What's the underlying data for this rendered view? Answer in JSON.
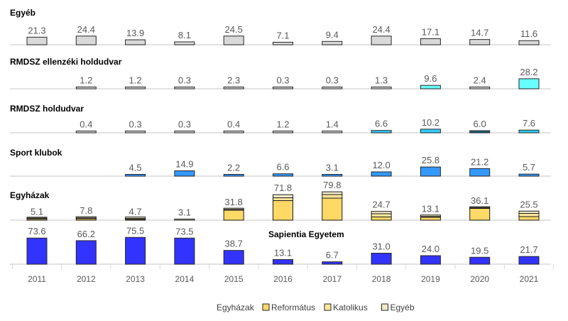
{
  "chart_data": {
    "type": "bar",
    "categories": [
      "2011",
      "2012",
      "2013",
      "2014",
      "2015",
      "2016",
      "2017",
      "2018",
      "2019",
      "2020",
      "2021"
    ],
    "panels": [
      {
        "title": "Egyéb",
        "values": [
          21.3,
          24.4,
          13.9,
          8.1,
          24.5,
          7.1,
          9.4,
          24.4,
          17.1,
          14.7,
          11.6
        ],
        "colors": [
          "#d9d9d9",
          "#d9d9d9",
          "#d9d9d9",
          "#d9d9d9",
          "#d9d9d9",
          "#d9d9d9",
          "#d9d9d9",
          "#d9d9d9",
          "#d9d9d9",
          "#d9d9d9",
          "#d9d9d9"
        ]
      },
      {
        "title": "RMDSZ ellenzéki holdudvar",
        "values": [
          null,
          1.2,
          1.2,
          0.3,
          2.3,
          0.3,
          0.3,
          1.3,
          9.6,
          2.4,
          28.2
        ],
        "colors": [
          "#d9d9d9",
          "#d9d9d9",
          "#d9d9d9",
          "#d9d9d9",
          "#d9d9d9",
          "#d9d9d9",
          "#d9d9d9",
          "#d9d9d9",
          "#66ffff",
          "#d9d9d9",
          "#66ffff"
        ]
      },
      {
        "title": "RMDSZ holdudvar",
        "values": [
          null,
          0.4,
          0.3,
          0.3,
          0.4,
          1.2,
          1.4,
          6.6,
          10.2,
          6.0,
          7.6
        ],
        "colors": [
          "#d9d9d9",
          "#d9d9d9",
          "#d9d9d9",
          "#d9d9d9",
          "#d9d9d9",
          "#d9d9d9",
          "#d9d9d9",
          "#33ccff",
          "#33ccff",
          "#1f5f7a",
          "#33ccff"
        ]
      },
      {
        "title": "Sport klubok",
        "values": [
          null,
          null,
          4.5,
          14.9,
          2.2,
          6.6,
          3.1,
          12.0,
          25.8,
          21.2,
          5.7
        ],
        "colors": [
          "#3399ff",
          "#3399ff",
          "#3399ff",
          "#3399ff",
          "#3399ff",
          "#3399ff",
          "#3399ff",
          "#3399ff",
          "#3399ff",
          "#3399ff",
          "#3399ff"
        ]
      },
      {
        "title": "Egyházak",
        "values": [
          5.1,
          7.8,
          4.7,
          3.1,
          31.8,
          71.8,
          79.8,
          24.7,
          13.1,
          36.1,
          25.5
        ],
        "stacked": {
          "Református": [
            3.5,
            4,
            0.5,
            0,
            28,
            55,
            62,
            9,
            8,
            33,
            10
          ],
          "Katolikus": [
            0.5,
            0.5,
            0.2,
            0,
            0.5,
            8,
            10,
            9,
            1,
            1,
            9
          ],
          "Egyéb": [
            1.1,
            3.3,
            4,
            3.1,
            3.3,
            8.8,
            7.8,
            6.7,
            4.1,
            2.1,
            6.5
          ]
        }
      },
      {
        "title": "Sapientia Egyetem",
        "values": [
          73.6,
          66.2,
          75.5,
          73.5,
          38.7,
          13.1,
          6.7,
          31.0,
          24.0,
          19.5,
          21.7
        ],
        "colors": [
          "#3333ff",
          "#3333ff",
          "#3333ff",
          "#3333ff",
          "#3333ff",
          "#3333ff",
          "#3333ff",
          "#3333ff",
          "#3333ff",
          "#3333ff",
          "#3333ff"
        ]
      }
    ],
    "legend": {
      "title": "Egyházak",
      "entries": [
        {
          "name": "Református",
          "color": "#ffd966"
        },
        {
          "name": "Katolikus",
          "color": "#ffe699"
        },
        {
          "name": "Egyéb",
          "color": "#f2eac8"
        }
      ],
      "position": "bottom"
    }
  }
}
